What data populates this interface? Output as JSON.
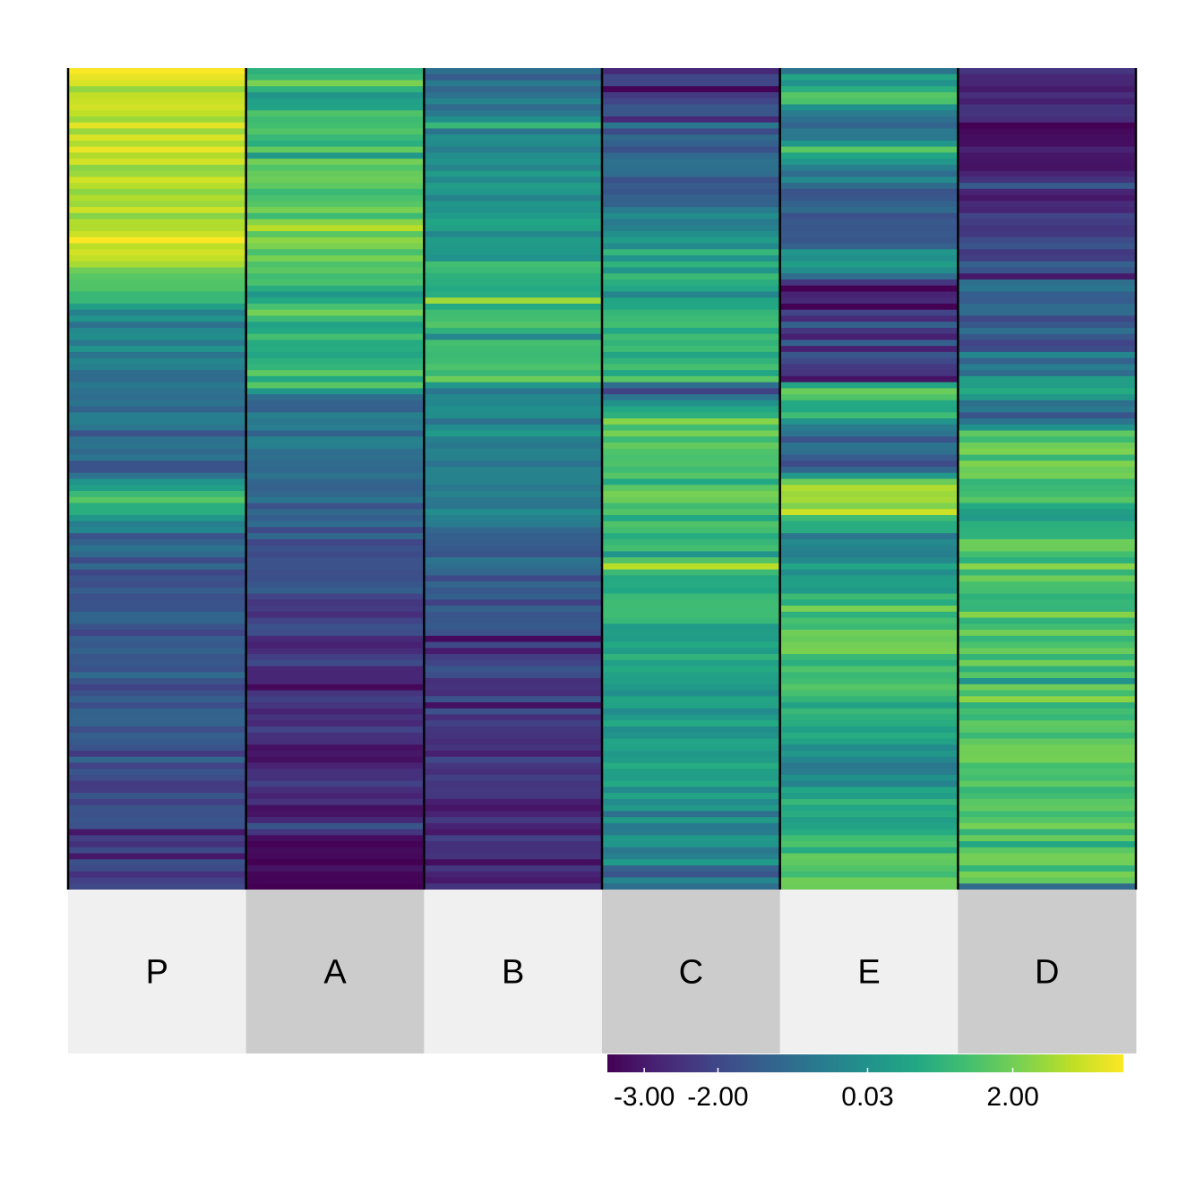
{
  "chart_data": {
    "type": "heatmap",
    "colormap": "viridis",
    "columns": [
      "P",
      "A",
      "B",
      "C",
      "E",
      "D"
    ],
    "group_colors": [
      "#f0f0f0",
      "#cccccc",
      "#f0f0f0",
      "#cccccc",
      "#f0f0f0",
      "#cccccc"
    ],
    "color_range": [
      -3.5,
      3.5
    ],
    "colorbar_ticks": [
      {
        "value": -3.0,
        "label": "-3.00"
      },
      {
        "value": -2.0,
        "label": "-2.00"
      },
      {
        "value": 0.03,
        "label": "0.03"
      },
      {
        "value": 2.0,
        "label": "2.00"
      }
    ],
    "row_count": 136,
    "series": [
      {
        "name": "P",
        "profile": [
          [
            0.0,
            3.4
          ],
          [
            0.03,
            2.6
          ],
          [
            0.09,
            2.9
          ],
          [
            0.16,
            2.3
          ],
          [
            0.21,
            3.2
          ],
          [
            0.23,
            3.5
          ],
          [
            0.26,
            1.2
          ],
          [
            0.28,
            1.2
          ],
          [
            0.3,
            -0.3
          ],
          [
            0.45,
            -0.9
          ],
          [
            0.49,
            -1.4
          ],
          [
            0.52,
            1.4
          ],
          [
            0.56,
            -0.3
          ],
          [
            0.6,
            -1.6
          ],
          [
            0.7,
            -1.4
          ],
          [
            0.8,
            -1.8
          ],
          [
            0.9,
            -2.0
          ],
          [
            1.0,
            -2.1
          ]
        ]
      },
      {
        "name": "A",
        "profile": [
          [
            0.0,
            1.5
          ],
          [
            0.04,
            0.2
          ],
          [
            0.06,
            1.3
          ],
          [
            0.22,
            1.8
          ],
          [
            0.3,
            1.0
          ],
          [
            0.4,
            1.3
          ],
          [
            0.39,
            1.2
          ],
          [
            0.4,
            -1.5
          ],
          [
            0.42,
            -0.6
          ],
          [
            0.5,
            -1.2
          ],
          [
            0.6,
            -1.6
          ],
          [
            0.67,
            -2.1
          ],
          [
            0.78,
            -2.3
          ],
          [
            0.84,
            -2.9
          ],
          [
            0.92,
            -2.9
          ],
          [
            0.96,
            -3.2
          ],
          [
            1.0,
            -3.4
          ]
        ]
      },
      {
        "name": "B",
        "profile": [
          [
            0.0,
            -1.2
          ],
          [
            0.08,
            -0.4
          ],
          [
            0.2,
            0.2
          ],
          [
            0.26,
            0.5
          ],
          [
            0.27,
            1.0
          ],
          [
            0.32,
            1.1
          ],
          [
            0.38,
            1.0
          ],
          [
            0.39,
            -0.7
          ],
          [
            0.44,
            -0.2
          ],
          [
            0.55,
            -0.6
          ],
          [
            0.62,
            -1.5
          ],
          [
            0.7,
            -1.9
          ],
          [
            0.8,
            -2.3
          ],
          [
            0.9,
            -2.6
          ],
          [
            1.0,
            -2.8
          ]
        ]
      },
      {
        "name": "C",
        "profile": [
          [
            0.0,
            -2.3
          ],
          [
            0.08,
            -1.6
          ],
          [
            0.15,
            -1.2
          ],
          [
            0.23,
            0.4
          ],
          [
            0.3,
            1.1
          ],
          [
            0.38,
            1.2
          ],
          [
            0.39,
            -2.4
          ],
          [
            0.41,
            0.3
          ],
          [
            0.44,
            1.6
          ],
          [
            0.5,
            1.3
          ],
          [
            0.55,
            1.1
          ],
          [
            0.62,
            1.3
          ],
          [
            0.7,
            0.6
          ],
          [
            0.78,
            0.3
          ],
          [
            0.86,
            0.5
          ],
          [
            0.91,
            -0.2
          ],
          [
            0.995,
            -0.2
          ],
          [
            1.0,
            -1.6
          ]
        ]
      },
      {
        "name": "E",
        "profile": [
          [
            0.0,
            -0.5
          ],
          [
            0.04,
            1.8
          ],
          [
            0.06,
            -1.5
          ],
          [
            0.1,
            0.5
          ],
          [
            0.15,
            -1.2
          ],
          [
            0.2,
            -2.0
          ],
          [
            0.24,
            0.8
          ],
          [
            0.26,
            -2.3
          ],
          [
            0.38,
            -2.4
          ],
          [
            0.39,
            2.6
          ],
          [
            0.41,
            0.9
          ],
          [
            0.44,
            -1.1
          ],
          [
            0.49,
            -1.6
          ],
          [
            0.5,
            2.0
          ],
          [
            0.54,
            2.4
          ],
          [
            0.57,
            -0.6
          ],
          [
            0.63,
            0.6
          ],
          [
            0.7,
            1.6
          ],
          [
            0.78,
            1.0
          ],
          [
            0.85,
            -0.4
          ],
          [
            0.9,
            0.8
          ],
          [
            0.95,
            1.2
          ],
          [
            1.0,
            1.6
          ]
        ]
      },
      {
        "name": "D",
        "profile": [
          [
            0.0,
            -2.6
          ],
          [
            0.1,
            -3.1
          ],
          [
            0.2,
            -2.2
          ],
          [
            0.25,
            -1.6
          ],
          [
            0.3,
            -0.8
          ],
          [
            0.34,
            -1.8
          ],
          [
            0.38,
            -0.2
          ],
          [
            0.39,
            1.2
          ],
          [
            0.42,
            -1.5
          ],
          [
            0.45,
            1.8
          ],
          [
            0.52,
            1.4
          ],
          [
            0.55,
            0.0
          ],
          [
            0.56,
            1.4
          ],
          [
            0.7,
            1.5
          ],
          [
            0.85,
            1.5
          ],
          [
            0.99,
            1.6
          ],
          [
            1.0,
            -1.8
          ]
        ]
      }
    ]
  }
}
